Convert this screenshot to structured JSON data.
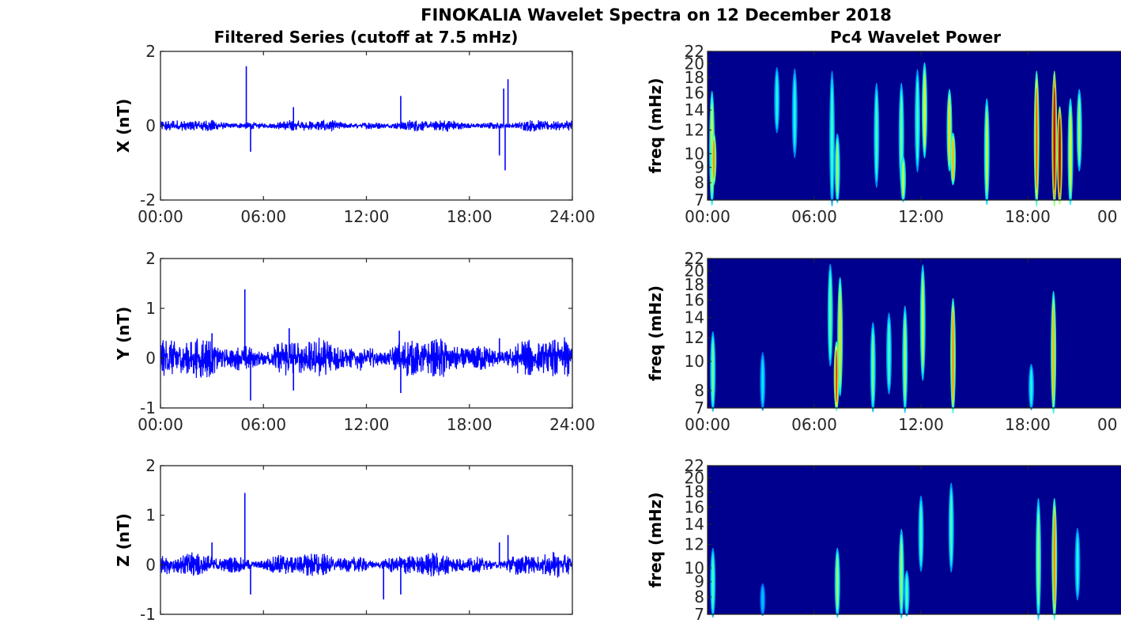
{
  "figure_title": "FINOKALIA Wavelet Spectra on 12 December 2018",
  "left_column_title": "Filtered Series (cutoff at 7.5 mHz)",
  "right_column_title": "Pc4 Wavelet Power",
  "colors": {
    "series_line": "#0000ff",
    "spectrogram_background": "#00008f",
    "axes": "#262626"
  },
  "chart_data": [
    {
      "type": "line",
      "title": "Filtered Series (cutoff at 7.5 mHz)",
      "xlabel": "",
      "ylabel": "X (nT)",
      "xlim": [
        "00:00",
        "24:00"
      ],
      "ylim": [
        -2,
        2
      ],
      "xticks": [
        "00:00",
        "06:00",
        "12:00",
        "18:00",
        "24:00"
      ],
      "yticks": [
        "-2",
        "0",
        "2"
      ],
      "series": [
        {
          "noise_amplitude_nT": 0.08,
          "spikes": [
            {
              "t": "05:00",
              "v": 1.6
            },
            {
              "t": "05:15",
              "v": -0.7
            },
            {
              "t": "07:45",
              "v": 0.5
            },
            {
              "t": "14:00",
              "v": 0.8
            },
            {
              "t": "19:45",
              "v": -0.8
            },
            {
              "t": "20:00",
              "v": 1.0
            },
            {
              "t": "20:15",
              "v": 1.25
            },
            {
              "t": "20:05",
              "v": -1.2
            }
          ]
        }
      ]
    },
    {
      "type": "line",
      "title": "",
      "xlabel": "",
      "ylabel": "Y (nT)",
      "xlim": [
        "00:00",
        "24:00"
      ],
      "ylim": [
        -1,
        2
      ],
      "xticks": [
        "00:00",
        "06:00",
        "12:00",
        "18:00",
        "24:00"
      ],
      "yticks": [
        "-1",
        "0",
        "1",
        "2"
      ],
      "series": [
        {
          "noise_amplitude_nT": 0.2,
          "spikes": [
            {
              "t": "04:55",
              "v": 1.38
            },
            {
              "t": "05:15",
              "v": -0.85
            },
            {
              "t": "07:30",
              "v": 0.6
            },
            {
              "t": "07:45",
              "v": -0.65
            },
            {
              "t": "13:55",
              "v": 0.55
            },
            {
              "t": "14:00",
              "v": -0.7
            },
            {
              "t": "03:00",
              "v": 0.5
            },
            {
              "t": "19:45",
              "v": 0.4
            }
          ]
        }
      ]
    },
    {
      "type": "line",
      "title": "",
      "xlabel": "",
      "ylabel": "Z (nT)",
      "xlim": [
        "00:00",
        "24:00"
      ],
      "ylim": [
        -1,
        2
      ],
      "xticks": [],
      "yticks": [
        "-1",
        "0",
        "1",
        "2"
      ],
      "series": [
        {
          "noise_amplitude_nT": 0.12,
          "spikes": [
            {
              "t": "04:55",
              "v": 1.45
            },
            {
              "t": "05:15",
              "v": -0.6
            },
            {
              "t": "03:00",
              "v": 0.45
            },
            {
              "t": "13:00",
              "v": -0.7
            },
            {
              "t": "14:00",
              "v": -0.6
            },
            {
              "t": "19:45",
              "v": 0.45
            },
            {
              "t": "20:15",
              "v": 0.6
            }
          ]
        }
      ]
    },
    {
      "type": "heatmap",
      "title": "Pc4 Wavelet Power",
      "xlabel": "",
      "ylabel": "freq (mHz)",
      "xlim": [
        "00:00",
        "24:00"
      ],
      "ylim": [
        7,
        22
      ],
      "log_y": true,
      "xticks": [
        "00:00",
        "06:00",
        "12:00",
        "18:00",
        "00"
      ],
      "yticks": [
        "7",
        "8",
        "9",
        "10",
        "12",
        "14",
        "16",
        "18",
        "20",
        "22"
      ],
      "features": [
        {
          "t": 0.25,
          "f0": 7,
          "f1": 17,
          "p": 0.55
        },
        {
          "t": 0.35,
          "f0": 8,
          "f1": 12,
          "p": 0.7
        },
        {
          "t": 3.9,
          "f0": 12,
          "f1": 20,
          "p": 0.3
        },
        {
          "t": 4.9,
          "f0": 10,
          "f1": 20,
          "p": 0.3
        },
        {
          "t": 7.0,
          "f0": 7,
          "f1": 20,
          "p": 0.35
        },
        {
          "t": 7.3,
          "f0": 7,
          "f1": 12,
          "p": 0.45
        },
        {
          "t": 9.5,
          "f0": 8,
          "f1": 18,
          "p": 0.35
        },
        {
          "t": 10.9,
          "f0": 8,
          "f1": 18,
          "p": 0.4
        },
        {
          "t": 11.0,
          "f0": 7,
          "f1": 10,
          "p": 0.5
        },
        {
          "t": 11.8,
          "f0": 9,
          "f1": 20,
          "p": 0.35
        },
        {
          "t": 12.2,
          "f0": 10,
          "f1": 21,
          "p": 0.55
        },
        {
          "t": 13.6,
          "f0": 9,
          "f1": 17,
          "p": 0.6
        },
        {
          "t": 13.8,
          "f0": 8,
          "f1": 12,
          "p": 0.65
        },
        {
          "t": 15.7,
          "f0": 7,
          "f1": 16,
          "p": 0.5
        },
        {
          "t": 18.5,
          "f0": 7,
          "f1": 20,
          "p": 0.75
        },
        {
          "t": 19.5,
          "f0": 7,
          "f1": 20,
          "p": 0.95
        },
        {
          "t": 19.8,
          "f0": 7,
          "f1": 15,
          "p": 1.0
        },
        {
          "t": 20.4,
          "f0": 7,
          "f1": 16,
          "p": 0.55
        },
        {
          "t": 20.9,
          "f0": 9,
          "f1": 17,
          "p": 0.45
        }
      ]
    },
    {
      "type": "heatmap",
      "title": "",
      "xlabel": "",
      "ylabel": "freq (mHz)",
      "xlim": [
        "00:00",
        "24:00"
      ],
      "ylim": [
        7,
        22
      ],
      "log_y": true,
      "xticks": [
        "00:00",
        "06:00",
        "12:00",
        "18:00",
        "00"
      ],
      "yticks": [
        "7",
        "8",
        "10",
        "12",
        "14",
        "16",
        "18",
        "20",
        "22"
      ],
      "features": [
        {
          "t": 0.3,
          "f0": 7,
          "f1": 13,
          "p": 0.4
        },
        {
          "t": 3.1,
          "f0": 7,
          "f1": 11,
          "p": 0.25
        },
        {
          "t": 6.9,
          "f0": 10,
          "f1": 22,
          "p": 0.4
        },
        {
          "t": 7.25,
          "f0": 7,
          "f1": 12,
          "p": 0.8
        },
        {
          "t": 7.45,
          "f0": 8,
          "f1": 20,
          "p": 0.6
        },
        {
          "t": 9.3,
          "f0": 7,
          "f1": 14,
          "p": 0.4
        },
        {
          "t": 10.2,
          "f0": 8,
          "f1": 15,
          "p": 0.35
        },
        {
          "t": 11.1,
          "f0": 7,
          "f1": 16,
          "p": 0.45
        },
        {
          "t": 12.1,
          "f0": 9,
          "f1": 22,
          "p": 0.5
        },
        {
          "t": 13.8,
          "f0": 7,
          "f1": 17,
          "p": 0.7
        },
        {
          "t": 18.2,
          "f0": 7,
          "f1": 10,
          "p": 0.3
        },
        {
          "t": 19.45,
          "f0": 7,
          "f1": 18,
          "p": 0.65
        }
      ]
    },
    {
      "type": "heatmap",
      "title": "",
      "xlabel": "",
      "ylabel": "freq (mHz)",
      "xlim": [
        "00:00",
        "24:00"
      ],
      "ylim": [
        7,
        22
      ],
      "log_y": true,
      "xticks": [],
      "yticks": [
        "7",
        "8",
        "9",
        "10",
        "12",
        "14",
        "16",
        "18",
        "20",
        "22"
      ],
      "features": [
        {
          "t": 0.3,
          "f0": 7,
          "f1": 12,
          "p": 0.35
        },
        {
          "t": 3.1,
          "f0": 7,
          "f1": 9,
          "p": 0.2
        },
        {
          "t": 7.3,
          "f0": 7,
          "f1": 12,
          "p": 0.45
        },
        {
          "t": 10.9,
          "f0": 7,
          "f1": 14,
          "p": 0.45
        },
        {
          "t": 11.2,
          "f0": 7,
          "f1": 10,
          "p": 0.35
        },
        {
          "t": 12.0,
          "f0": 10,
          "f1": 18,
          "p": 0.35
        },
        {
          "t": 13.7,
          "f0": 10,
          "f1": 20,
          "p": 0.35
        },
        {
          "t": 18.6,
          "f0": 7,
          "f1": 18,
          "p": 0.45
        },
        {
          "t": 19.5,
          "f0": 7,
          "f1": 18,
          "p": 0.7
        },
        {
          "t": 20.8,
          "f0": 8,
          "f1": 14,
          "p": 0.3
        }
      ]
    }
  ]
}
